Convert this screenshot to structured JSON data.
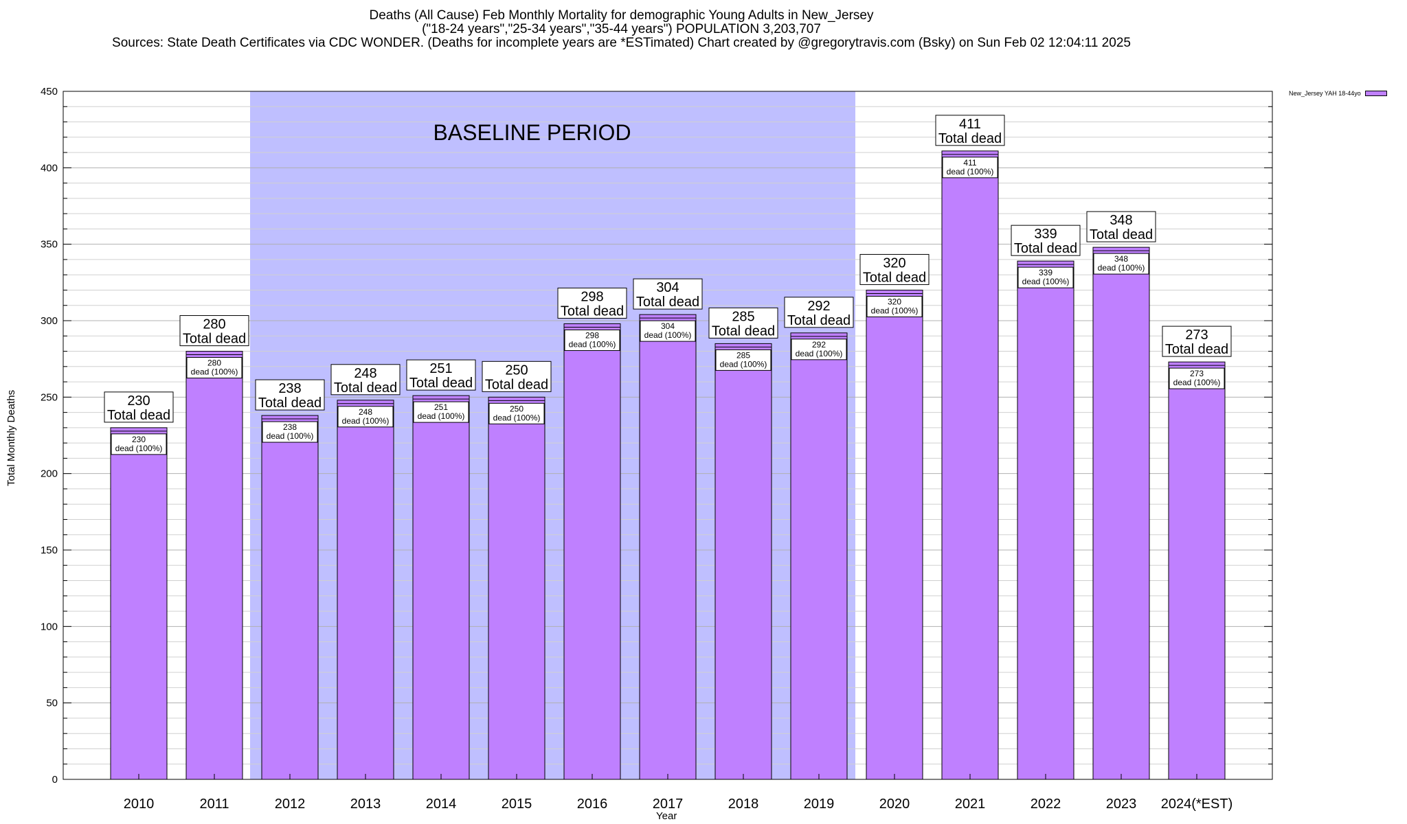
{
  "titles": {
    "line1": "Deaths (All Cause) Feb Monthly Mortality for demographic Young Adults in New_Jersey",
    "line2": "(\"18-24 years\",\"25-34 years\",\"35-44 years\") POPULATION 3,203,707",
    "line3": "Sources: State Death Certificates via CDC WONDER. (Deaths for incomplete years are *ESTimated)                 Chart created by @gregorytravis.com (Bsky) on Sun Feb 02 12:04:11 2025"
  },
  "chart_data": {
    "type": "bar",
    "xlabel": "Year",
    "ylabel": "Total Monthly Deaths",
    "ylim": [
      0,
      450
    ],
    "yticks": [
      0,
      50,
      100,
      150,
      200,
      250,
      300,
      350,
      400,
      450
    ],
    "grid": true,
    "legend_position": "top-right",
    "categories": [
      "2010",
      "2011",
      "2012",
      "2013",
      "2014",
      "2015",
      "2016",
      "2017",
      "2018",
      "2019",
      "2020",
      "2021",
      "2022",
      "2023",
      "2024(*EST)"
    ],
    "series": [
      {
        "name": "New_Jersey YAH 18-44yo",
        "color": "#bf80ff",
        "values": [
          230,
          280,
          238,
          248,
          251,
          250,
          298,
          304,
          285,
          292,
          320,
          411,
          339,
          348,
          273
        ]
      }
    ],
    "total_label": "Total dead",
    "inner_label_suffix": "dead (100%)",
    "baseline": {
      "label": "BASELINE PERIOD",
      "from": "2012",
      "to": "2019",
      "color": "#bfbfff"
    }
  }
}
